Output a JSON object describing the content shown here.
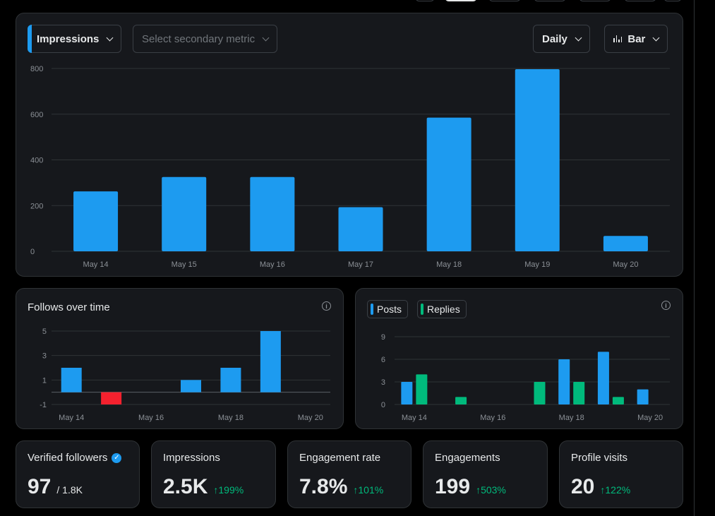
{
  "main_chart": {
    "metric_label": "Impressions",
    "secondary_placeholder": "Select secondary metric",
    "interval_label": "Daily",
    "chart_type_label": "Bar",
    "chart_data": {
      "type": "bar",
      "categories": [
        "May 14",
        "May 15",
        "May 16",
        "May 17",
        "May 18",
        "May 19",
        "May 20"
      ],
      "values": [
        262,
        325,
        325,
        193,
        585,
        797,
        67
      ],
      "yticks": [
        0,
        200,
        400,
        600,
        800
      ],
      "ylim": [
        0,
        800
      ],
      "bar_color": "#1d9bf0",
      "grid": true
    }
  },
  "follows": {
    "title": "Follows over time",
    "info_icon": "info-icon",
    "chart_data": {
      "type": "bar",
      "categories": [
        "May 14",
        "May 15",
        "May 16",
        "May 17",
        "May 18",
        "May 19",
        "May 20"
      ],
      "values": [
        2,
        -1,
        0,
        1,
        2,
        5,
        0
      ],
      "xtick_labels": [
        "May 14",
        "May 16",
        "May 18",
        "May 20"
      ],
      "yticks": [
        -1,
        1,
        3,
        5
      ],
      "ylim": [
        -1,
        5
      ],
      "positive_color": "#1d9bf0",
      "negative_color": "#f4212e"
    }
  },
  "posts_replies": {
    "legend": [
      {
        "label": "Posts",
        "color": "#1d9bf0"
      },
      {
        "label": "Replies",
        "color": "#00ba7c"
      }
    ],
    "info_icon": "info-icon",
    "chart_data": {
      "type": "bar",
      "categories": [
        "May 14",
        "May 15",
        "May 16",
        "May 17",
        "May 18",
        "May 19",
        "May 20"
      ],
      "series": [
        {
          "name": "Posts",
          "values": [
            3,
            0,
            0,
            0,
            6,
            7,
            2
          ]
        },
        {
          "name": "Replies",
          "values": [
            4,
            1,
            0,
            3,
            3,
            1,
            0
          ]
        }
      ],
      "xtick_labels": [
        "May 14",
        "May 16",
        "May 18",
        "May 20"
      ],
      "yticks": [
        0,
        3,
        6,
        9
      ],
      "ylim": [
        0,
        9
      ]
    }
  },
  "stats": [
    {
      "label": "Verified followers",
      "value": "97",
      "sub": "/ 1.8K",
      "verified": true
    },
    {
      "label": "Impressions",
      "value": "2.5K",
      "change": "199%"
    },
    {
      "label": "Engagement rate",
      "value": "7.8%",
      "change": "101%"
    },
    {
      "label": "Engagements",
      "value": "199",
      "change": "503%"
    },
    {
      "label": "Profile visits",
      "value": "20",
      "change": "122%"
    }
  ],
  "colors": {
    "accent": "#1d9bf0",
    "positive": "#00ba7c",
    "negative": "#f4212e",
    "card": "#16181c"
  }
}
